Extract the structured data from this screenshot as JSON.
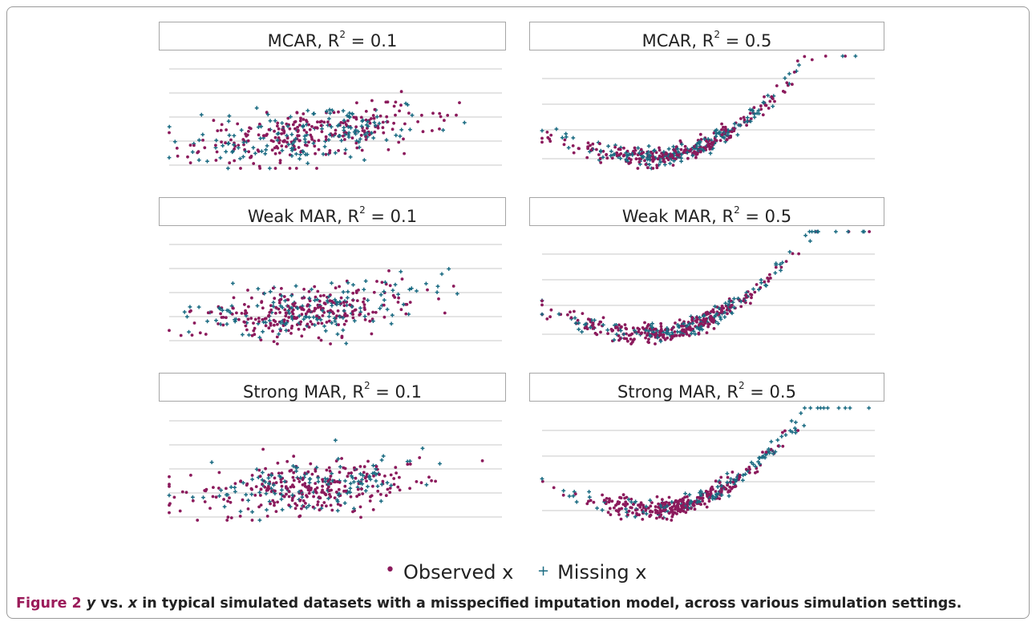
{
  "colors": {
    "observed": "#8b1a5c",
    "missing": "#1a6b82",
    "grid": "#c8c8c8",
    "frame": "#9a9a9a",
    "caption_label": "#9b1b5a"
  },
  "legend": {
    "observed_label": "Observed x",
    "missing_label": "Missing x",
    "observed_marker": "•",
    "missing_marker": "+",
    "placement": "bottom"
  },
  "caption": {
    "label": "Figure 2",
    "var_y": "y",
    "vs": " vs. ",
    "var_x": "x",
    "text": " in typical simulated datasets with a misspecified imputation model, across various simulation settings."
  },
  "chart_data": [
    {
      "type": "scatter",
      "title_main": "MCAR, R",
      "title_sup": "2",
      "title_tail": " = 0.1",
      "grid": "horizontal",
      "series": [
        {
          "name": "Observed x"
        },
        {
          "name": "Missing x"
        }
      ],
      "missing_mechanism": "MCAR",
      "r2": 0.1
    },
    {
      "type": "scatter",
      "title_main": "MCAR, R",
      "title_sup": "2",
      "title_tail": " = 0.5",
      "grid": "horizontal",
      "series": [
        {
          "name": "Observed x"
        },
        {
          "name": "Missing x"
        }
      ],
      "missing_mechanism": "MCAR",
      "r2": 0.5
    },
    {
      "type": "scatter",
      "title_main": "Weak MAR, R",
      "title_sup": "2",
      "title_tail": " = 0.1",
      "grid": "horizontal",
      "series": [
        {
          "name": "Observed x"
        },
        {
          "name": "Missing x"
        }
      ],
      "missing_mechanism": "Weak MAR",
      "r2": 0.1
    },
    {
      "type": "scatter",
      "title_main": "Weak MAR, R",
      "title_sup": "2",
      "title_tail": " = 0.5",
      "grid": "horizontal",
      "series": [
        {
          "name": "Observed x"
        },
        {
          "name": "Missing x"
        }
      ],
      "missing_mechanism": "Weak MAR",
      "r2": 0.5
    },
    {
      "type": "scatter",
      "title_main": "Strong MAR, R",
      "title_sup": "2",
      "title_tail": " = 0.1",
      "grid": "horizontal",
      "series": [
        {
          "name": "Observed x"
        },
        {
          "name": "Missing x"
        }
      ],
      "missing_mechanism": "Strong MAR",
      "r2": 0.1
    },
    {
      "type": "scatter",
      "title_main": "Strong MAR, R",
      "title_sup": "2",
      "title_tail": " = 0.5",
      "grid": "horizontal",
      "series": [
        {
          "name": "Observed x"
        },
        {
          "name": "Missing x"
        }
      ],
      "missing_mechanism": "Strong MAR",
      "r2": 0.5
    }
  ]
}
